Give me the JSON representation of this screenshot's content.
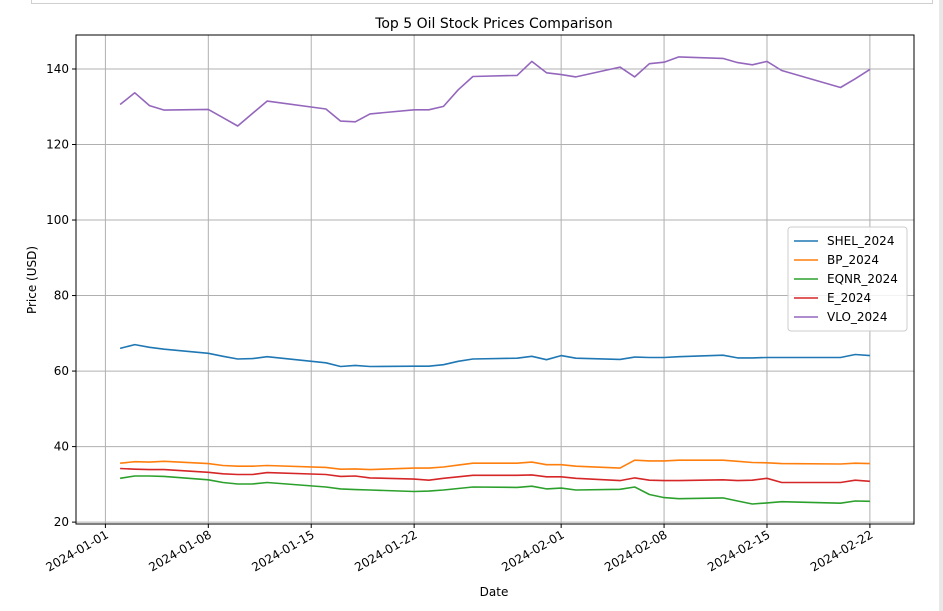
{
  "chart_data": {
    "type": "line",
    "title": "Top 5 Oil Stock Prices Comparison",
    "xlabel": "Date",
    "ylabel": "Price (USD)",
    "xlim": [
      "2023-12-30",
      "2024-02-25"
    ],
    "ylim": [
      19.5,
      149
    ],
    "x_ticks": [
      "2024-01-01",
      "2024-01-08",
      "2024-01-15",
      "2024-01-22",
      "2024-02-01",
      "2024-02-08",
      "2024-02-15",
      "2024-02-22"
    ],
    "y_ticks": [
      20,
      40,
      60,
      80,
      100,
      120,
      140
    ],
    "grid": true,
    "legend_position": "center-right",
    "x": [
      "2024-01-02",
      "2024-01-03",
      "2024-01-04",
      "2024-01-05",
      "2024-01-08",
      "2024-01-09",
      "2024-01-10",
      "2024-01-11",
      "2024-01-12",
      "2024-01-16",
      "2024-01-17",
      "2024-01-18",
      "2024-01-19",
      "2024-01-22",
      "2024-01-23",
      "2024-01-24",
      "2024-01-25",
      "2024-01-26",
      "2024-01-29",
      "2024-01-30",
      "2024-01-31",
      "2024-02-01",
      "2024-02-02",
      "2024-02-05",
      "2024-02-06",
      "2024-02-07",
      "2024-02-08",
      "2024-02-09",
      "2024-02-12",
      "2024-02-13",
      "2024-02-14",
      "2024-02-15",
      "2024-02-16",
      "2024-02-20",
      "2024-02-21",
      "2024-02-22"
    ],
    "series": [
      {
        "name": "SHEL_2024",
        "color": "#1f77b4",
        "values": [
          66.0,
          67.0,
          66.3,
          65.8,
          64.7,
          63.9,
          63.2,
          63.3,
          63.8,
          62.2,
          61.2,
          61.5,
          61.2,
          61.3,
          61.3,
          61.7,
          62.6,
          63.2,
          63.4,
          63.9,
          63.0,
          64.1,
          63.4,
          63.1,
          63.7,
          63.6,
          63.6,
          63.8,
          64.2,
          63.5,
          63.5,
          63.6,
          63.6,
          63.6,
          64.4,
          64.1
        ]
      },
      {
        "name": "BP_2024",
        "color": "#ff7f0e",
        "values": [
          35.6,
          36.0,
          35.9,
          36.1,
          35.5,
          35.0,
          34.8,
          34.8,
          35.0,
          34.5,
          34.0,
          34.1,
          33.9,
          34.3,
          34.3,
          34.6,
          35.1,
          35.6,
          35.6,
          35.9,
          35.2,
          35.2,
          34.8,
          34.3,
          36.4,
          36.2,
          36.2,
          36.4,
          36.4,
          36.1,
          35.8,
          35.7,
          35.5,
          35.4,
          35.6,
          35.5
        ]
      },
      {
        "name": "EQNR_2024",
        "color": "#2ca02c",
        "values": [
          31.6,
          32.2,
          32.2,
          32.1,
          31.2,
          30.5,
          30.1,
          30.1,
          30.5,
          29.3,
          28.8,
          28.6,
          28.5,
          28.1,
          28.2,
          28.5,
          28.9,
          29.3,
          29.2,
          29.5,
          28.8,
          29.0,
          28.5,
          28.7,
          29.3,
          27.3,
          26.5,
          26.2,
          26.4,
          25.6,
          24.8,
          25.1,
          25.4,
          25.0,
          25.6,
          25.5
        ]
      },
      {
        "name": "E_2024",
        "color": "#d62728",
        "values": [
          34.2,
          34.0,
          33.9,
          33.9,
          33.2,
          32.8,
          32.6,
          32.6,
          33.1,
          32.6,
          32.1,
          32.2,
          31.7,
          31.4,
          31.1,
          31.6,
          32.0,
          32.4,
          32.4,
          32.5,
          32.0,
          32.0,
          31.6,
          31.0,
          31.7,
          31.1,
          31.0,
          31.0,
          31.2,
          31.0,
          31.1,
          31.6,
          30.5,
          30.5,
          31.1,
          30.8
        ]
      },
      {
        "name": "VLO_2024",
        "color": "#9467bd",
        "values": [
          130.6,
          133.7,
          130.3,
          129.1,
          129.3,
          127.1,
          124.9,
          128.2,
          131.5,
          129.4,
          126.2,
          126.0,
          128.1,
          129.2,
          129.2,
          130.1,
          134.5,
          138.0,
          138.3,
          142.0,
          139.0,
          138.5,
          137.9,
          140.5,
          137.9,
          141.4,
          141.8,
          143.2,
          142.8,
          141.7,
          141.1,
          142.0,
          139.6,
          135.1,
          137.4,
          139.9
        ]
      }
    ]
  }
}
